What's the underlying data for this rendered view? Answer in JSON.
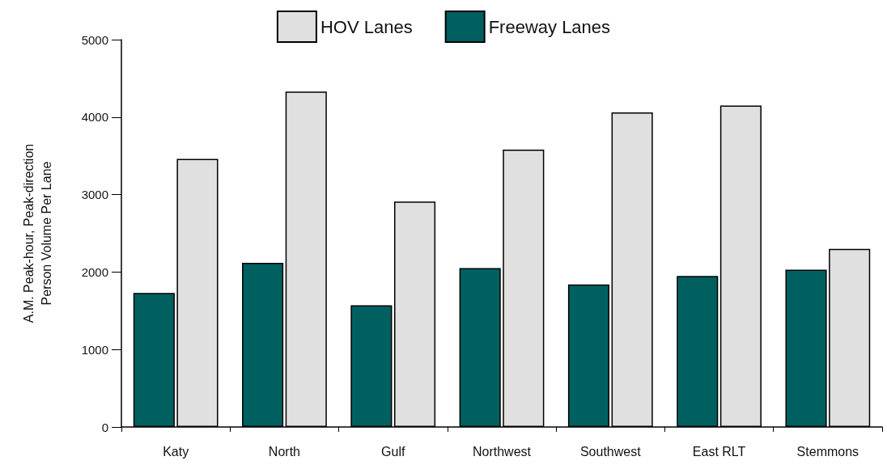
{
  "chart_data": {
    "type": "bar",
    "ylabel": "A.M. Peak-hour, Peak-direction\nPerson Volume Per Lane",
    "categories": [
      "Katy",
      "North",
      "Gulf",
      "Northwest",
      "Southwest",
      "East RLT",
      "Stemmons"
    ],
    "series": [
      {
        "name": "HOV Lanes",
        "color": "#e0e0e0",
        "values": [
          3460,
          4330,
          2910,
          3580,
          4060,
          4150,
          2300
        ]
      },
      {
        "name": "Freeway Lanes",
        "color": "#006060",
        "values": [
          1730,
          2120,
          1570,
          2050,
          1840,
          1950,
          2030
        ]
      }
    ],
    "ylim": [
      0,
      5000
    ],
    "yticks": [
      0,
      1000,
      2000,
      3000,
      4000,
      5000
    ],
    "grid": false,
    "legend": "top"
  }
}
